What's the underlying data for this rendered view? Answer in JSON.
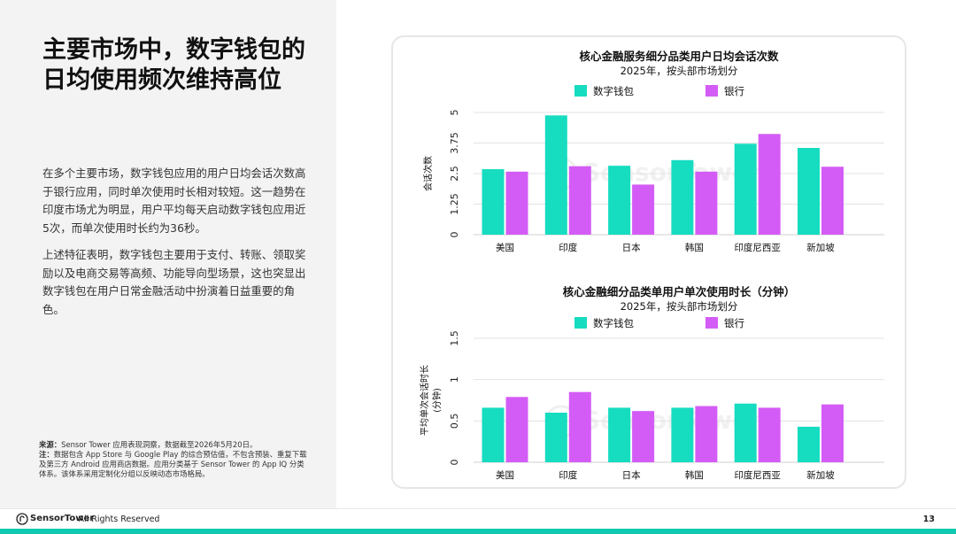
{
  "headline": "主要市场中，数字钱包的日均使用频次维持高位",
  "paragraphs": [
    "在多个主要市场，数字钱包应用的用户日均会话次数高于银行应用，同时单次使用时长相对较短。这一趋势在印度市场尤为明显，用户平均每天启动数字钱包应用近5次，而单次使用时长约为36秒。",
    "上述特征表明，数字钱包主要用于支付、转账、领取奖励以及电商交易等高频、功能导向型场景，这也突显出数字钱包在用户日常金融活动中扮演着日益重要的角色。"
  ],
  "notes": {
    "source_label": "来源：",
    "source_text": "Sensor Tower 应用表现洞察，数据截至2026年5月20日。",
    "note_label": "注：",
    "note_text": "数据包含 App Store 与 Google Play 的综合预估值，不包含预装、重复下载及第三方 Android 应用商店数据。应用分类基于 Sensor Tower 的 App IQ 分类体系。该体系采用定制化分组以反映动态市场格局。"
  },
  "watermark": "SensorTower",
  "footer": {
    "brand": "SensorTower",
    "rights": "- All Rights Reserved",
    "page": "13"
  },
  "colors": {
    "wallet": "#16dcc0",
    "bank": "#d45cf6",
    "accent": "#10c9b1"
  },
  "chart_data": [
    {
      "type": "bar",
      "title": "核心金融服务细分品类用户日均会话次数",
      "subtitle": "2025年，按头部市场划分",
      "ylabel": "会话次数",
      "xlabel": "",
      "ylim": [
        0,
        5
      ],
      "yticks": [
        "0",
        "1.25",
        "2.5",
        "3.75",
        "5"
      ],
      "categories": [
        "美国",
        "印度",
        "日本",
        "韩国",
        "印度尼西亚",
        "新加坡"
      ],
      "series": [
        {
          "name": "数字钱包",
          "values": [
            2.68,
            4.88,
            2.82,
            3.05,
            3.72,
            3.55
          ]
        },
        {
          "name": "银行",
          "values": [
            2.58,
            2.8,
            2.05,
            2.58,
            4.12,
            2.78
          ]
        }
      ],
      "grid": true,
      "legend": "top-center"
    },
    {
      "type": "bar",
      "title": "核心金融细分品类单用户单次使用时长（分钟）",
      "subtitle": "2025年，按头部市场划分",
      "ylabel": "平均单次会话时长 (分钟)",
      "xlabel": "",
      "ylim": [
        0,
        1.5
      ],
      "yticks": [
        "0",
        "0.5",
        "1",
        "1.5"
      ],
      "categories": [
        "美国",
        "印度",
        "日本",
        "韩国",
        "印度尼西亚",
        "新加坡"
      ],
      "series": [
        {
          "name": "数字钱包",
          "values": [
            0.66,
            0.6,
            0.66,
            0.66,
            0.71,
            0.43
          ]
        },
        {
          "name": "银行",
          "values": [
            0.79,
            0.85,
            0.62,
            0.68,
            0.66,
            0.7
          ]
        }
      ],
      "grid": true,
      "legend": "top-center"
    }
  ]
}
